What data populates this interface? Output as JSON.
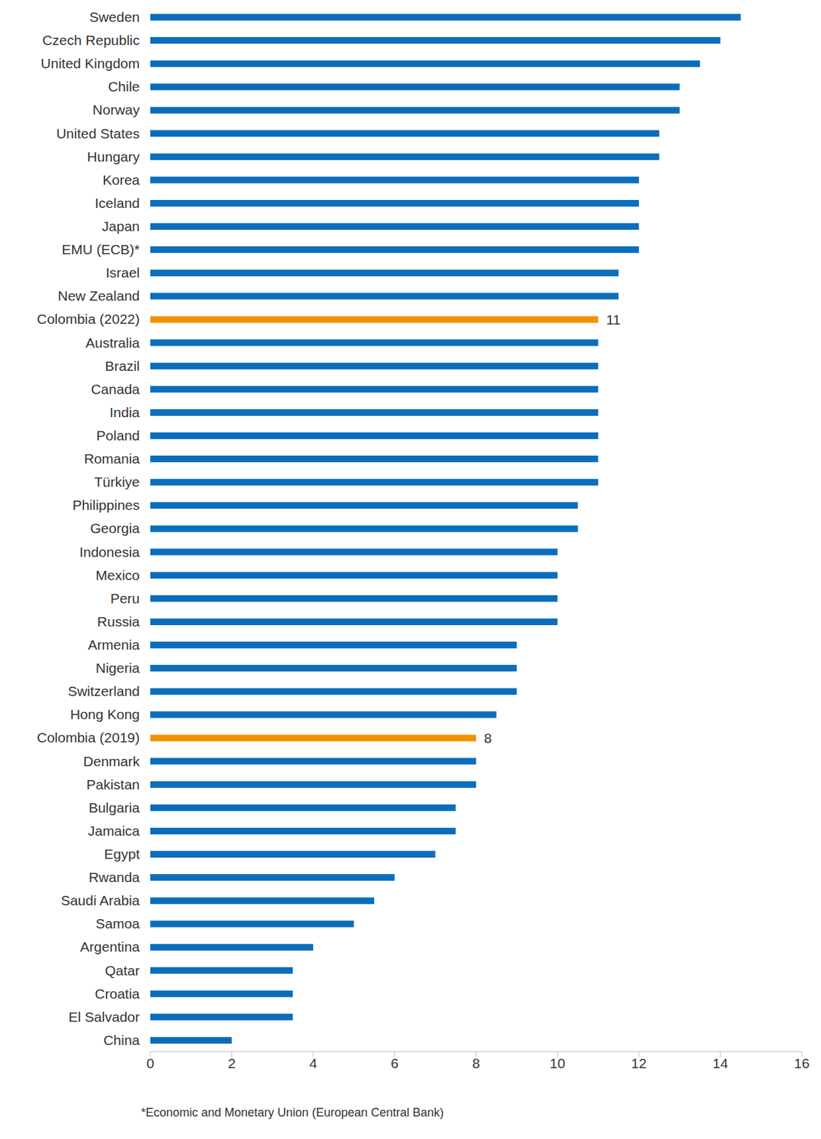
{
  "chart_data": {
    "type": "bar",
    "orientation": "horizontal",
    "categories": [
      "Sweden",
      "Czech Republic",
      "United Kingdom",
      "Chile",
      "Norway",
      "United States",
      "Hungary",
      "Korea",
      "Iceland",
      "Japan",
      "EMU (ECB)*",
      "Israel",
      "New Zealand",
      "Colombia (2022)",
      "Australia",
      "Brazil",
      "Canada",
      "India",
      "Poland",
      "Romania",
      "Türkiye",
      "Philippines",
      "Georgia",
      "Indonesia",
      "Mexico",
      "Peru",
      "Russia",
      "Armenia",
      "Nigeria",
      "Switzerland",
      "Hong Kong",
      "Colombia (2019)",
      "Denmark",
      "Pakistan",
      "Bulgaria",
      "Jamaica",
      "Egypt",
      "Rwanda",
      "Saudi Arabia",
      "Samoa",
      "Argentina",
      "Qatar",
      "Croatia",
      "El Salvador",
      "China"
    ],
    "values": [
      14.5,
      14,
      13.5,
      13,
      13,
      12.5,
      12.5,
      12,
      12,
      12,
      12,
      11.5,
      11.5,
      11,
      11,
      11,
      11,
      11,
      11,
      11,
      11,
      10.5,
      10.5,
      10,
      10,
      10,
      10,
      9,
      9,
      9,
      8.5,
      8,
      8,
      8,
      7.5,
      7.5,
      7,
      6,
      5.5,
      5,
      4,
      3.5,
      3.5,
      3.5,
      2
    ],
    "value_labels": [
      null,
      null,
      null,
      null,
      null,
      null,
      null,
      null,
      null,
      null,
      null,
      null,
      null,
      "11",
      null,
      null,
      null,
      null,
      null,
      null,
      null,
      null,
      null,
      null,
      null,
      null,
      null,
      null,
      null,
      null,
      null,
      "8",
      null,
      null,
      null,
      null,
      null,
      null,
      null,
      null,
      null,
      null,
      null,
      null,
      null
    ],
    "colors": [
      "#0a6ebd",
      "#0a6ebd",
      "#0a6ebd",
      "#0a6ebd",
      "#0a6ebd",
      "#0a6ebd",
      "#0a6ebd",
      "#0a6ebd",
      "#0a6ebd",
      "#0a6ebd",
      "#0a6ebd",
      "#0a6ebd",
      "#0a6ebd",
      "#f39200",
      "#0a6ebd",
      "#0a6ebd",
      "#0a6ebd",
      "#0a6ebd",
      "#0a6ebd",
      "#0a6ebd",
      "#0a6ebd",
      "#0a6ebd",
      "#0a6ebd",
      "#0a6ebd",
      "#0a6ebd",
      "#0a6ebd",
      "#0a6ebd",
      "#0a6ebd",
      "#0a6ebd",
      "#0a6ebd",
      "#0a6ebd",
      "#f39200",
      "#0a6ebd",
      "#0a6ebd",
      "#0a6ebd",
      "#0a6ebd",
      "#0a6ebd",
      "#0a6ebd",
      "#0a6ebd",
      "#0a6ebd",
      "#0a6ebd",
      "#0a6ebd",
      "#0a6ebd",
      "#0a6ebd",
      "#0a6ebd"
    ],
    "xlim": [
      0,
      16
    ],
    "xticks": [
      0,
      2,
      4,
      6,
      8,
      10,
      12,
      14,
      16
    ],
    "grid": false,
    "annotations": [
      "*Economic and Monetary Union (European Central Bank)"
    ]
  }
}
